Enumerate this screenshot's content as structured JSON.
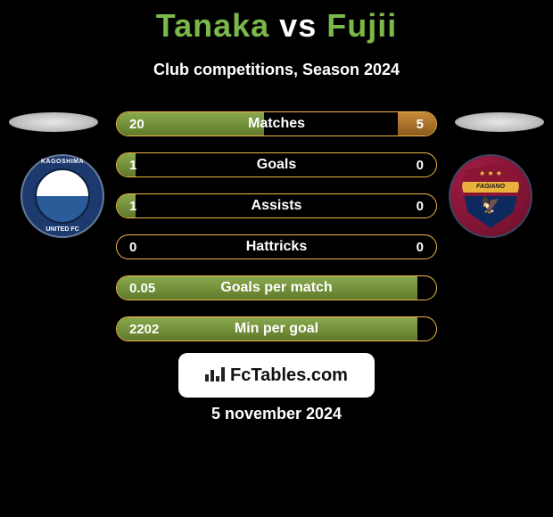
{
  "title": {
    "player1": "Tanaka",
    "vs": "vs",
    "player2": "Fujii"
  },
  "subtitle": "Club competitions, Season 2024",
  "crest_left": {
    "top_text": "KAGOSHIMA",
    "bottom_text": "UNITED FC",
    "outer_color": "#1c3a6e"
  },
  "crest_right": {
    "band_text": "FAGIANO",
    "outer_color": "#8a1434"
  },
  "stats": [
    {
      "label": "Matches",
      "left_value": "20",
      "right_value": "5",
      "left_fill_pct": 46,
      "right_fill_pct": 12
    },
    {
      "label": "Goals",
      "left_value": "1",
      "right_value": "0",
      "left_fill_pct": 6,
      "right_fill_pct": 0
    },
    {
      "label": "Assists",
      "left_value": "1",
      "right_value": "0",
      "left_fill_pct": 6,
      "right_fill_pct": 0
    },
    {
      "label": "Hattricks",
      "left_value": "0",
      "right_value": "0",
      "left_fill_pct": 0,
      "right_fill_pct": 0
    },
    {
      "label": "Goals per match",
      "left_value": "0.05",
      "right_value": "",
      "left_fill_pct": 94,
      "right_fill_pct": 0
    },
    {
      "label": "Min per goal",
      "left_value": "2202",
      "right_value": "",
      "left_fill_pct": 94,
      "right_fill_pct": 0
    }
  ],
  "colors": {
    "title_accent": "#7ab84a",
    "bar_border": "#f0b847",
    "left_fill_top": "#8aa84d",
    "left_fill_bottom": "#5f7a2a",
    "right_fill_top": "#c98b3a",
    "right_fill_bottom": "#8a5a1e",
    "background": "#000000",
    "text": "#ffffff"
  },
  "branding": {
    "text": "FcTables.com"
  },
  "date": "5 november 2024"
}
